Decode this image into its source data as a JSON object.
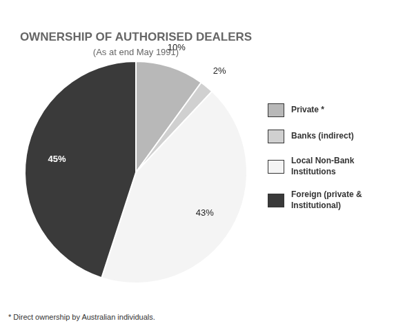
{
  "chart_data": {
    "type": "pie",
    "title": "OWNERSHIP OF AUTHORISED DEALERS",
    "subtitle": "(As at end May 1991)",
    "annotations": [
      "* Direct ownership by Australian individuals."
    ],
    "categories": [
      "Private *",
      "Banks (indirect)",
      "Local Non-Bank\nInstitutions",
      "Foreign (private &\nInstitutional)"
    ],
    "values": [
      10,
      2,
      43,
      45
    ],
    "value_labels": [
      "10%",
      "2%",
      "43%",
      "45%"
    ],
    "colors": [
      "#b8b8b8",
      "#d0d0d0",
      "#f4f4f4",
      "#3a3a3a"
    ],
    "data_labels": true,
    "legend": "right"
  }
}
